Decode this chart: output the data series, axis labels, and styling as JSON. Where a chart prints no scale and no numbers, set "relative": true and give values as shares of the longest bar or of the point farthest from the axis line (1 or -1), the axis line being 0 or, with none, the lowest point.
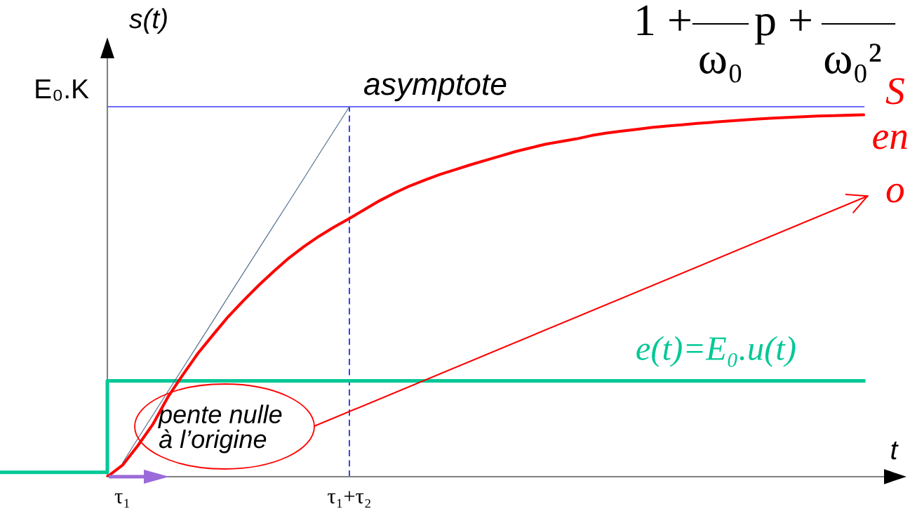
{
  "chart_data": {
    "type": "line",
    "relative": true,
    "xlabel": "t",
    "ylabel": "s(t)",
    "tick_labels": "x",
    "categories": [
      null,
      null,
      null,
      null,
      null,
      null,
      null,
      null,
      "τ₁",
      null,
      null,
      null,
      null,
      null,
      null,
      null,
      null,
      null,
      null,
      null,
      null,
      null,
      null,
      "τ₁+τ₂",
      null,
      null,
      null,
      null,
      null,
      null,
      null,
      null,
      null,
      null,
      null,
      null,
      null,
      null,
      null,
      null,
      null,
      null,
      null,
      null,
      null,
      null,
      null,
      null,
      null,
      null,
      null,
      null,
      null,
      null,
      null,
      null,
      null,
      null
    ],
    "series": [
      {
        "color": "#ff0000",
        "values": [
          null,
          null,
          null,
          null,
          null,
          null,
          null,
          0,
          0.031,
          0.083,
          0.141,
          0.215,
          0.276,
          0.334,
          0.384,
          0.433,
          0.476,
          0.517,
          0.555,
          0.591,
          0.622,
          0.65,
          0.675,
          0.698,
          0.722,
          0.746,
          0.767,
          0.786,
          0.802,
          0.817,
          0.83,
          0.843,
          0.855,
          0.867,
          0.879,
          0.889,
          0.899,
          0.906,
          0.913,
          0.922,
          0.929,
          0.934,
          0.939,
          0.944,
          0.948,
          0.951,
          0.955,
          0.958,
          0.961,
          0.964,
          0.967,
          0.969,
          0.971,
          0.973,
          0.975,
          0.976,
          0.977,
          0.978
        ]
      },
      {
        "type": "step",
        "name": "e(t)=E₀.u(t)",
        "color": "#00c896",
        "values": [
          0.012,
          0.012,
          0.012,
          0.012,
          0.012,
          0.012,
          0.012,
          0.259,
          0.259,
          0.259,
          0.259,
          0.259,
          0.259,
          0.259,
          0.259,
          0.259,
          0.259,
          0.259,
          0.259,
          0.259,
          0.259,
          0.259,
          0.259,
          0.259,
          0.259,
          0.259,
          0.259,
          0.259,
          0.259,
          0.259,
          0.259,
          0.259,
          0.259,
          0.259,
          0.259,
          0.259,
          0.259,
          0.259,
          0.259,
          0.259,
          0.259,
          0.259,
          0.259,
          0.259,
          0.259,
          0.259,
          0.259,
          0.259,
          0.259,
          0.259,
          0.259,
          0.259,
          0.259,
          0.259,
          0.259,
          0.259,
          0.259,
          0.259
        ]
      },
      {
        "color": "#4a6a8a",
        "values": [
          null,
          null,
          null,
          null,
          null,
          null,
          null,
          null,
          0.037,
          0.102,
          0.166,
          0.23,
          0.294,
          0.358,
          0.422,
          0.487,
          0.551,
          0.615,
          0.679,
          0.743,
          0.807,
          0.872,
          0.936,
          1,
          null,
          null,
          null,
          null,
          null,
          null,
          null,
          null,
          null,
          null,
          null,
          null,
          null,
          null,
          null,
          null,
          null,
          null,
          null,
          null,
          null,
          null,
          null,
          null,
          null,
          null,
          null,
          null,
          null,
          null,
          null,
          null,
          null,
          null
        ]
      }
    ],
    "ref_lines": [
      {
        "axis": "y",
        "value": 1,
        "label": "E₀.K",
        "color": "#6b6bf7"
      },
      {
        "axis": "x",
        "value": "τ₁+τ₂",
        "color": "#2a2aff",
        "line_style": "dashed"
      }
    ],
    "annotations": [
      {
        "text": "asymptote",
        "x": "τ₁+τ₂",
        "y": 1
      },
      "pente nulle\nà l’origine",
      "1 +",
      "ω₀",
      "p +",
      "ω₀²",
      "S",
      "en",
      "o"
    ]
  }
}
